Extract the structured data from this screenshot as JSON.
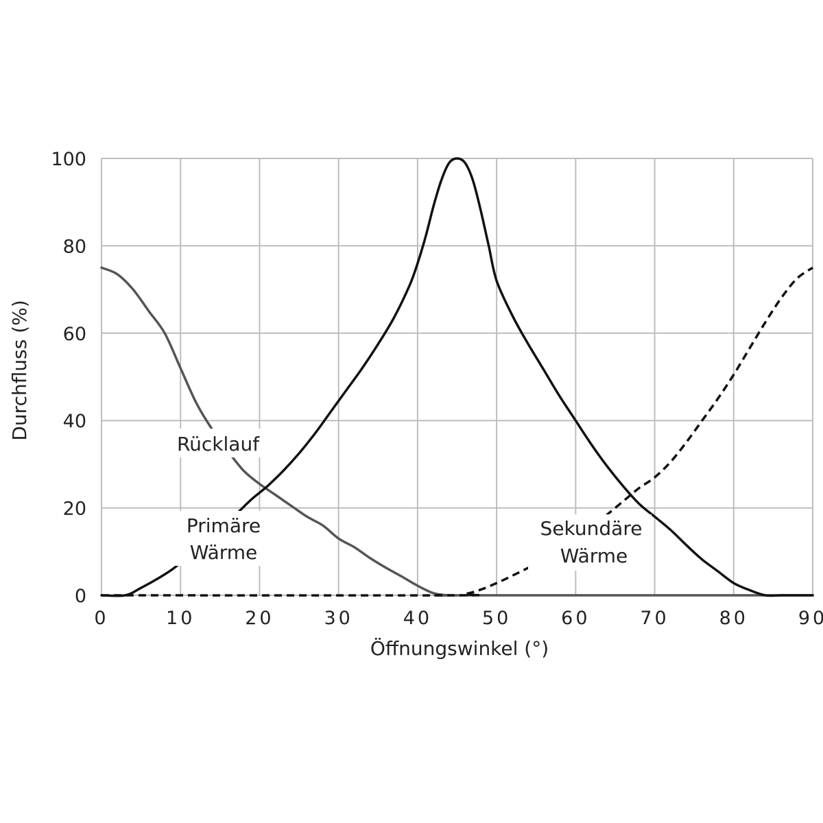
{
  "chart_data": {
    "type": "line",
    "xlabel": "Öffnungswinkel (°)",
    "ylabel": "Durchfluss (%)",
    "xlim": [
      0,
      90
    ],
    "ylim": [
      0,
      100
    ],
    "x_ticks": [
      "0",
      "10",
      "20",
      "30",
      "40",
      "50",
      "60",
      "70",
      "80",
      "90"
    ],
    "y_ticks": [
      "0",
      "20",
      "40",
      "60",
      "80",
      "100"
    ],
    "grid": true,
    "series": [
      {
        "name": "Rücklauf",
        "style": "solid",
        "color": "#555555",
        "x": [
          0,
          2,
          4,
          6,
          8,
          10,
          12,
          14,
          16,
          18,
          20,
          22,
          24,
          26,
          28,
          30,
          32,
          34,
          36,
          38,
          40,
          42,
          44,
          46,
          90
        ],
        "y": [
          75,
          73.5,
          70,
          65,
          60,
          52,
          44,
          38,
          33,
          28.5,
          25.5,
          23,
          20.5,
          18,
          16,
          13,
          11,
          8.5,
          6.3,
          4.3,
          2.2,
          0.5,
          0,
          0,
          0
        ]
      },
      {
        "name": "Primäre Wärme",
        "style": "solid",
        "color": "#111111",
        "x": [
          0,
          3,
          5,
          7,
          9,
          11,
          13,
          15,
          17,
          19,
          21,
          23,
          25,
          27,
          29,
          31,
          33,
          35,
          37,
          39,
          40,
          41,
          42,
          43,
          44,
          45,
          46,
          47,
          48,
          49,
          50,
          52,
          54,
          56,
          58,
          60,
          62,
          64,
          66,
          68,
          70,
          72,
          74,
          76,
          78,
          80,
          82,
          84,
          86,
          87.5,
          90
        ],
        "y": [
          0,
          0,
          1.7,
          3.7,
          6,
          9,
          12,
          15,
          18.5,
          22,
          25,
          28.5,
          32.5,
          37,
          42,
          47,
          52,
          57.5,
          63.5,
          71,
          76,
          82,
          89,
          95,
          99,
          100,
          99,
          95,
          88,
          80,
          72,
          64,
          57.5,
          51.5,
          45.5,
          40,
          34.5,
          29.5,
          25,
          21,
          18,
          15,
          11.5,
          8.2,
          5.5,
          2.8,
          1.2,
          0,
          0,
          0,
          0
        ]
      },
      {
        "name": "Sekundäre Wärme",
        "style": "dashed",
        "color": "#111111",
        "x": [
          0,
          44,
          46,
          48,
          50,
          52,
          54,
          56,
          58,
          60,
          62,
          64,
          66,
          68,
          70,
          72,
          74,
          76,
          78,
          80,
          82,
          84,
          86,
          88,
          90
        ],
        "y": [
          0,
          0,
          0.3,
          1.3,
          2.8,
          4.5,
          6.3,
          8.2,
          10.5,
          13,
          15.5,
          18.5,
          21.5,
          24.5,
          27,
          30.5,
          35,
          40,
          45,
          50.5,
          56.5,
          62.5,
          68,
          72.5,
          75
        ]
      }
    ]
  },
  "annotations": {
    "ruecklauf": "Rücklauf",
    "primaer_line1": "Primäre",
    "primaer_line2": "Wärme",
    "sekundaer_line1": "Sekundäre",
    "sekundaer_line2": "Wärme"
  }
}
